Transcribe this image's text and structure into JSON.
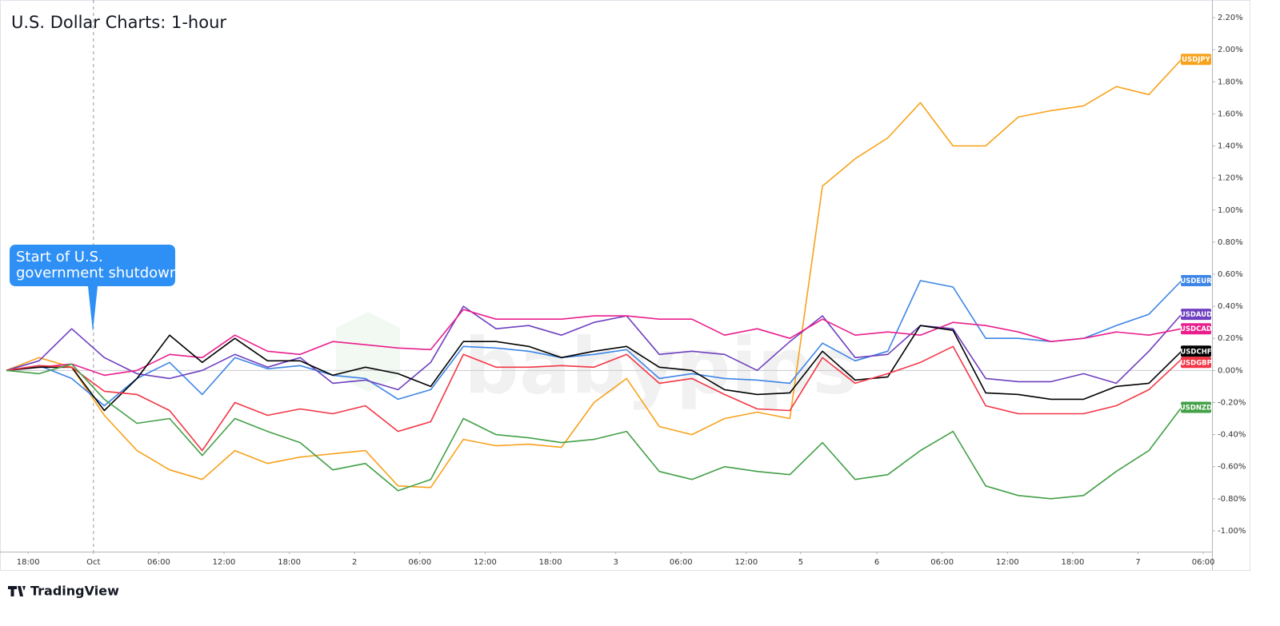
{
  "chart_data": {
    "type": "line",
    "title": "U.S. Dollar Charts: 1-hour",
    "annotation": {
      "lines": [
        "Start of U.S.",
        "government shutdown"
      ],
      "x": 8
    },
    "watermark": "babypips",
    "brand": "TradingView",
    "x": [
      0,
      3,
      6,
      9,
      12,
      15,
      18,
      21,
      24,
      27,
      30,
      33,
      36,
      39,
      42,
      45,
      48,
      51,
      54,
      57,
      60,
      63,
      66,
      69,
      72,
      75,
      78,
      81,
      84,
      87,
      90,
      93,
      96,
      99,
      102,
      105,
      108
    ],
    "xlim": [
      0,
      110.8
    ],
    "xticks": [
      {
        "value": 2,
        "label": "18:00"
      },
      {
        "value": 8,
        "label": "Oct"
      },
      {
        "value": 14,
        "label": "06:00"
      },
      {
        "value": 20,
        "label": "12:00"
      },
      {
        "value": 26,
        "label": "18:00"
      },
      {
        "value": 32,
        "label": "2"
      },
      {
        "value": 38,
        "label": "06:00"
      },
      {
        "value": 44,
        "label": "12:00"
      },
      {
        "value": 50,
        "label": "18:00"
      },
      {
        "value": 56,
        "label": "3"
      },
      {
        "value": 62,
        "label": "06:00"
      },
      {
        "value": 68,
        "label": "12:00"
      },
      {
        "value": 73,
        "label": "5"
      },
      {
        "value": 80,
        "label": "6"
      },
      {
        "value": 86,
        "label": "06:00"
      },
      {
        "value": 92,
        "label": "12:00"
      },
      {
        "value": 98,
        "label": "18:00"
      },
      {
        "value": 104,
        "label": "7"
      },
      {
        "value": 110,
        "label": "06:00"
      }
    ],
    "ylim": [
      -1.13,
      2.3
    ],
    "yticks": [
      {
        "value": 2.2,
        "label": "2.20%"
      },
      {
        "value": 2.0,
        "label": "2.00%"
      },
      {
        "value": 1.8,
        "label": "1.80%"
      },
      {
        "value": 1.6,
        "label": "1.60%"
      },
      {
        "value": 1.4,
        "label": "1.40%"
      },
      {
        "value": 1.2,
        "label": "1.20%"
      },
      {
        "value": 1.0,
        "label": "1.00%"
      },
      {
        "value": 0.8,
        "label": "0.80%"
      },
      {
        "value": 0.6,
        "label": "0.60%"
      },
      {
        "value": 0.4,
        "label": "0.40%"
      },
      {
        "value": 0.2,
        "label": "0.20%"
      },
      {
        "value": 0,
        "label": "0.00%"
      },
      {
        "value": -0.2,
        "label": "-0.20%"
      },
      {
        "value": -0.4,
        "label": "-0.40%"
      },
      {
        "value": -0.6,
        "label": "-0.60%"
      },
      {
        "value": -0.8,
        "label": "-0.80%"
      },
      {
        "value": -1.0,
        "label": "-1.00%"
      }
    ],
    "series": [
      {
        "name": "USDJPY",
        "color": "#f7a21b",
        "values": [
          0,
          0.08,
          0.02,
          -0.28,
          -0.5,
          -0.62,
          -0.68,
          -0.5,
          -0.58,
          -0.54,
          -0.52,
          -0.5,
          -0.72,
          -0.73,
          -0.43,
          -0.47,
          -0.46,
          -0.48,
          -0.2,
          -0.05,
          -0.35,
          -0.4,
          -0.3,
          -0.26,
          -0.3,
          1.15,
          1.32,
          1.45,
          1.67,
          1.4,
          1.4,
          1.58,
          1.62,
          1.65,
          1.77,
          1.72,
          1.94
        ]
      },
      {
        "name": "USDEUR",
        "color": "#3d85e6",
        "values": [
          0,
          0.03,
          -0.05,
          -0.22,
          -0.05,
          0.05,
          -0.15,
          0.08,
          0.01,
          0.03,
          -0.03,
          -0.05,
          -0.18,
          -0.12,
          0.15,
          0.14,
          0.12,
          0.08,
          0.1,
          0.13,
          -0.05,
          -0.02,
          -0.05,
          -0.06,
          -0.08,
          0.17,
          0.06,
          0.12,
          0.56,
          0.52,
          0.2,
          0.2,
          0.18,
          0.2,
          0.28,
          0.35,
          0.56
        ]
      },
      {
        "name": "USDAUD",
        "color": "#6e3fbf",
        "values": [
          0,
          0.06,
          0.26,
          0.08,
          -0.02,
          -0.05,
          0,
          0.1,
          0.02,
          0.08,
          -0.08,
          -0.06,
          -0.12,
          0.05,
          0.4,
          0.26,
          0.28,
          0.22,
          0.3,
          0.34,
          0.1,
          0.12,
          0.1,
          0,
          0.18,
          0.34,
          0.08,
          0.1,
          0.28,
          0.26,
          -0.05,
          -0.07,
          -0.07,
          -0.02,
          -0.08,
          0.12,
          0.35
        ]
      },
      {
        "name": "USDCAD",
        "color": "#e91e8c",
        "values": [
          0,
          0.02,
          0.04,
          -0.03,
          0,
          0.1,
          0.08,
          0.22,
          0.12,
          0.1,
          0.18,
          0.16,
          0.14,
          0.13,
          0.38,
          0.32,
          0.32,
          0.32,
          0.34,
          0.34,
          0.32,
          0.32,
          0.22,
          0.26,
          0.2,
          0.32,
          0.22,
          0.24,
          0.22,
          0.3,
          0.28,
          0.24,
          0.18,
          0.2,
          0.24,
          0.22,
          0.26
        ]
      },
      {
        "name": "USDCHF",
        "color": "#000000",
        "values": [
          0,
          0.02,
          0.02,
          -0.25,
          -0.05,
          0.22,
          0.05,
          0.2,
          0.06,
          0.06,
          -0.03,
          0.02,
          -0.02,
          -0.1,
          0.18,
          0.18,
          0.15,
          0.08,
          0.12,
          0.15,
          0.02,
          0,
          -0.12,
          -0.15,
          -0.14,
          0.12,
          -0.06,
          -0.04,
          0.28,
          0.25,
          -0.14,
          -0.15,
          -0.18,
          -0.18,
          -0.1,
          -0.08,
          0.12
        ]
      },
      {
        "name": "USDGBP",
        "color": "#f23645",
        "values": [
          0,
          0.03,
          0.02,
          -0.13,
          -0.15,
          -0.25,
          -0.5,
          -0.2,
          -0.28,
          -0.24,
          -0.27,
          -0.22,
          -0.38,
          -0.32,
          0.1,
          0.02,
          0.02,
          0.03,
          0.02,
          0.1,
          -0.08,
          -0.05,
          -0.15,
          -0.24,
          -0.25,
          0.08,
          -0.08,
          -0.02,
          0.05,
          0.15,
          -0.22,
          -0.27,
          -0.27,
          -0.27,
          -0.22,
          -0.12,
          0.07
        ]
      },
      {
        "name": "USDNZD",
        "color": "#43a047",
        "values": [
          0,
          -0.02,
          0.04,
          -0.18,
          -0.33,
          -0.3,
          -0.53,
          -0.3,
          -0.38,
          -0.45,
          -0.62,
          -0.58,
          -0.75,
          -0.68,
          -0.3,
          -0.4,
          -0.42,
          -0.45,
          -0.43,
          -0.38,
          -0.63,
          -0.68,
          -0.6,
          -0.63,
          -0.65,
          -0.45,
          -0.68,
          -0.65,
          -0.5,
          -0.38,
          -0.72,
          -0.78,
          -0.8,
          -0.78,
          -0.63,
          -0.5,
          -0.23
        ]
      }
    ]
  }
}
